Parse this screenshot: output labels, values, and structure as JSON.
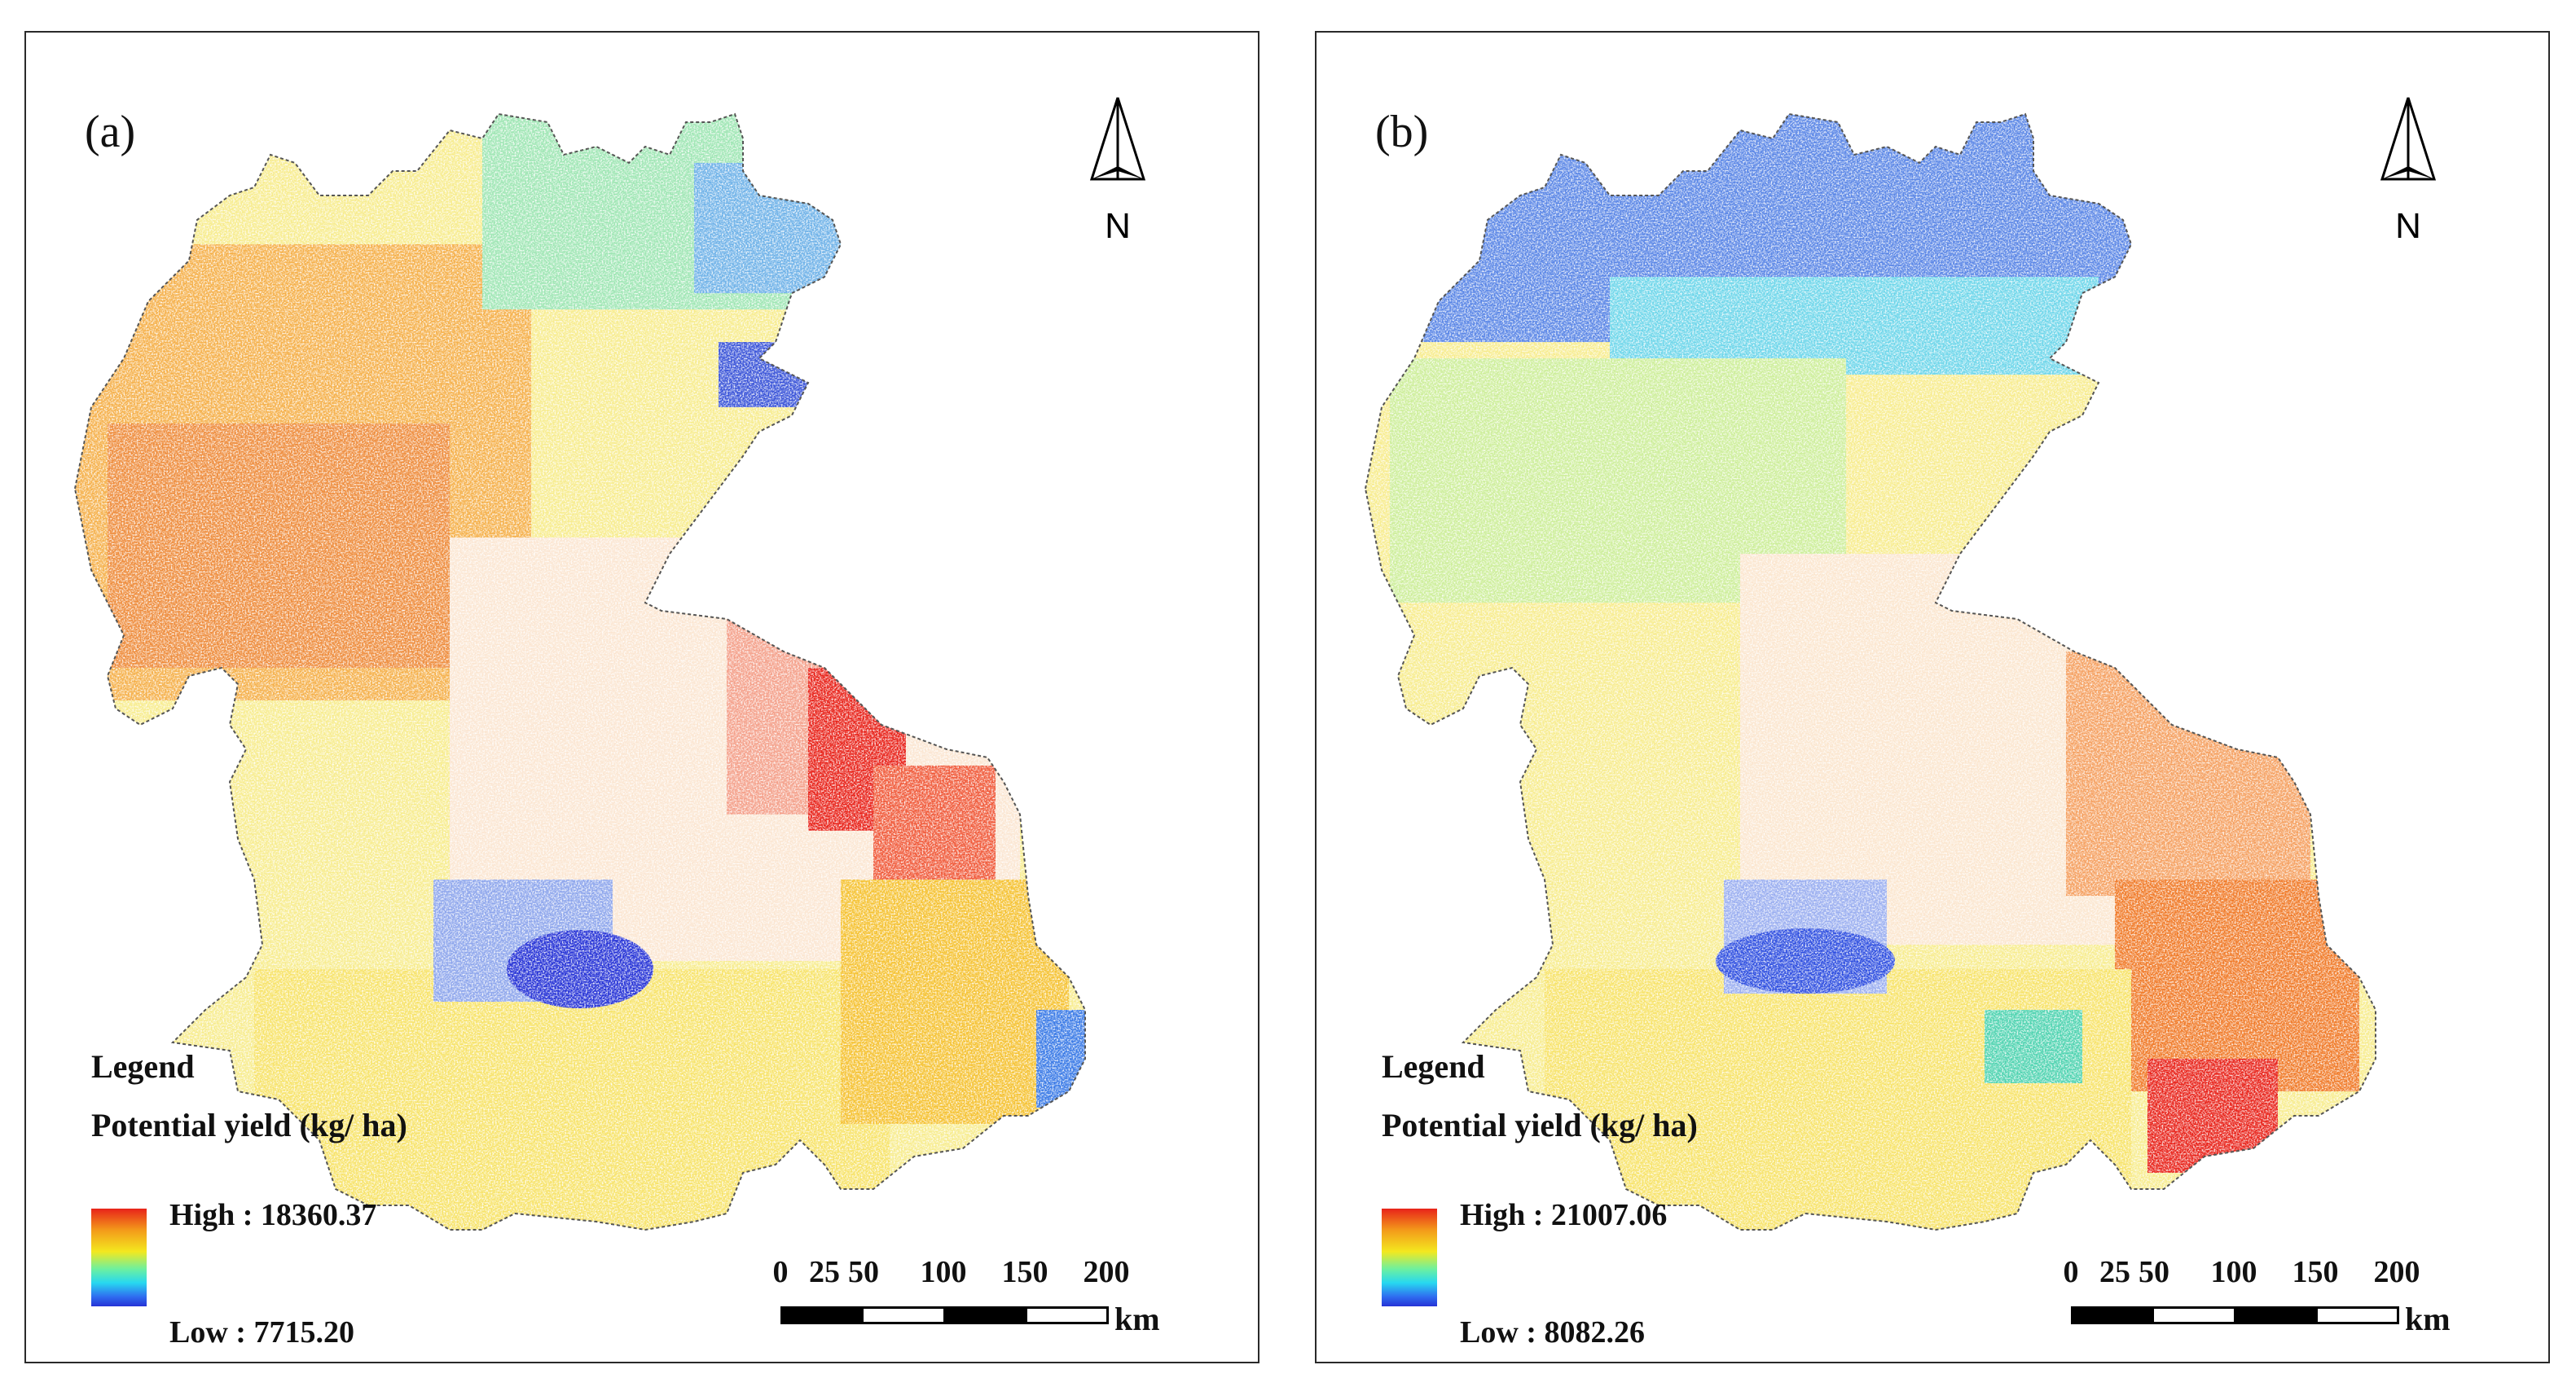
{
  "panels": [
    {
      "label": "(a)",
      "north_label": "N",
      "legend": {
        "title": "Legend",
        "subtitle": "Potential yield (kg/ ha)",
        "high": "High : 18360.37",
        "low": "Low : 7715.20"
      },
      "scale": {
        "ticks": [
          "0",
          "25",
          "50",
          "100",
          "150",
          "200"
        ],
        "unit": "km"
      }
    },
    {
      "label": "(b)",
      "north_label": "N",
      "legend": {
        "title": "Legend",
        "subtitle": "Potential yield (kg/ ha)",
        "high": "High : 21007.06",
        "low": "Low : 8082.26"
      },
      "scale": {
        "ticks": [
          "0",
          "25",
          "50",
          "100",
          "150",
          "200"
        ],
        "unit": "km"
      }
    }
  ],
  "colors": {
    "high": "#e8231a",
    "orange": "#f39a1a",
    "yellow": "#f3e81f",
    "green": "#6cf0a0",
    "cyan": "#27d8f0",
    "blue": "#2f6ef0",
    "low": "#2633d6"
  }
}
